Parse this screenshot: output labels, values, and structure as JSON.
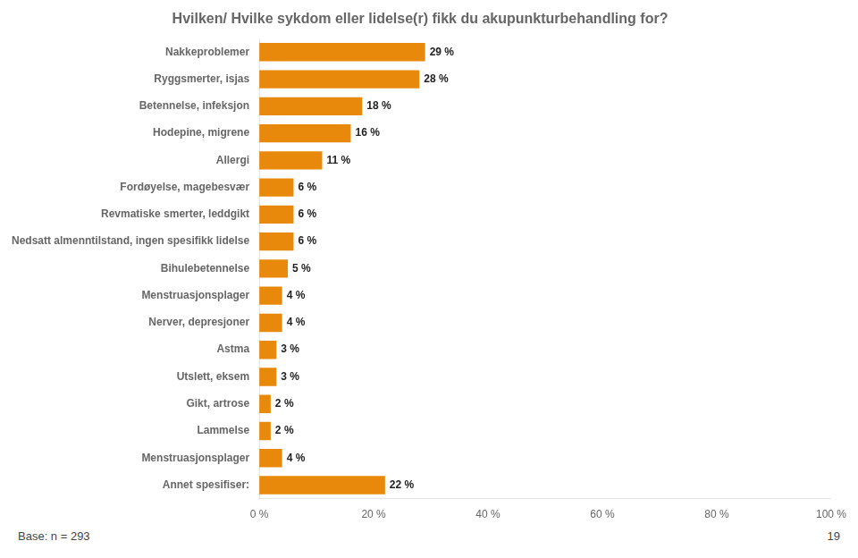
{
  "chart_data": {
    "type": "bar",
    "orientation": "horizontal",
    "title": "Hvilken/ Hvilke sykdom eller lidelse(r) fikk du akupunkturbehandling for?",
    "categories": [
      "Nakkeproblemer",
      "Ryggsmerter, isjas",
      "Betennelse, infeksjon",
      "Hodepine, migrene",
      "Allergi",
      "Fordøyelse, magebesvær",
      "Revmatiske smerter, leddgikt",
      "Nedsatt almenntilstand, ingen spesifikk lidelse",
      "Bihulebetennelse",
      "Menstruasjonsplager",
      "Nerver, depresjoner",
      "Astma",
      "Utslett, eksem",
      "Gikt, artrose",
      "Lammelse",
      "Menstruasjonsplager",
      "Annet spesifiser:"
    ],
    "values": [
      29,
      28,
      18,
      16,
      11,
      6,
      6,
      6,
      5,
      4,
      4,
      3,
      3,
      2,
      2,
      4,
      22
    ],
    "value_labels": [
      "29 %",
      "28 %",
      "18 %",
      "16 %",
      "11 %",
      "6 %",
      "6 %",
      "6 %",
      "5 %",
      "4 %",
      "4 %",
      "3 %",
      "3 %",
      "2 %",
      "2 %",
      "4 %",
      "22 %"
    ],
    "data_labels": true,
    "color": "#E8890C",
    "xlim": [
      0,
      100
    ],
    "xticks": [
      {
        "value": 0,
        "label": "0 %"
      },
      {
        "value": 20,
        "label": "20 %"
      },
      {
        "value": 40,
        "label": "40 %"
      },
      {
        "value": 60,
        "label": "60 %"
      },
      {
        "value": 80,
        "label": "80 %"
      },
      {
        "value": 100,
        "label": "100 %"
      }
    ],
    "grid": false,
    "annotations": [
      "Base: n = 293",
      "19"
    ]
  }
}
